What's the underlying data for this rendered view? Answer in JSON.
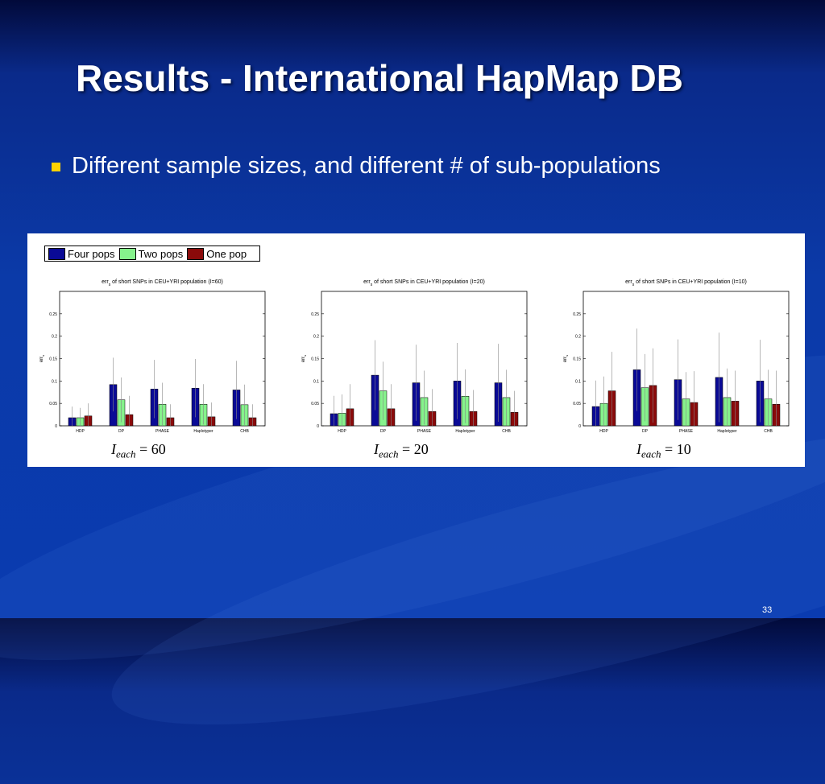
{
  "slide": {
    "title": "Results - International HapMap DB",
    "bullet": "Different sample sizes, and different # of sub-populations",
    "page_number": "33"
  },
  "colors": {
    "background": "#0b3aa8",
    "bullet": "#ffd200",
    "series": [
      "#0a0a96",
      "#86f28c",
      "#8a0a0a"
    ]
  },
  "legend": [
    {
      "label": "Four pops",
      "color": "#0a0a96"
    },
    {
      "label": "Two pops",
      "color": "#86f28c"
    },
    {
      "label": "One pop",
      "color": "#8a0a0a"
    }
  ],
  "chart_data": [
    {
      "type": "bar",
      "title_prefix": "err",
      "title_sub": "s",
      "title_rest": " of short SNPs in CEU+YRI population (I=60)",
      "ylabel_main": "err",
      "ylabel_sub": "s",
      "categories": [
        "HDP",
        "DP",
        "PHASE",
        "Haplotyper",
        "CHB"
      ],
      "yticks": [
        "0",
        "0.05",
        "0.1",
        "0.15",
        "0.2",
        "0.25"
      ],
      "ylim": [
        0,
        0.3
      ],
      "grid": false,
      "caption_var": "I",
      "caption_sub": "each",
      "caption_value": "= 60",
      "series": [
        {
          "name": "Four pops",
          "values": [
            0.018,
            0.092,
            0.082,
            0.084,
            0.08
          ],
          "err": [
            0.025,
            0.06,
            0.065,
            0.065,
            0.065
          ]
        },
        {
          "name": "Two pops",
          "values": [
            0.018,
            0.058,
            0.048,
            0.048,
            0.047
          ],
          "err": [
            0.022,
            0.05,
            0.048,
            0.045,
            0.045
          ]
        },
        {
          "name": "One pop",
          "values": [
            0.022,
            0.025,
            0.018,
            0.02,
            0.018
          ],
          "err": [
            0.028,
            0.042,
            0.03,
            0.032,
            0.03
          ]
        }
      ]
    },
    {
      "type": "bar",
      "title_prefix": "err",
      "title_sub": "s",
      "title_rest": " of short SNPs in CEU+YRI population (I=20)",
      "ylabel_main": "err",
      "ylabel_sub": "s",
      "categories": [
        "HDP",
        "DP",
        "PHASE",
        "Haplotyper",
        "CHB"
      ],
      "yticks": [
        "0",
        "0.05",
        "0.1",
        "0.15",
        "0.2",
        "0.25"
      ],
      "ylim": [
        0,
        0.3
      ],
      "grid": false,
      "caption_var": "I",
      "caption_sub": "each",
      "caption_value": "= 20",
      "series": [
        {
          "name": "Four pops",
          "values": [
            0.027,
            0.113,
            0.096,
            0.1,
            0.096
          ],
          "err": [
            0.04,
            0.078,
            0.085,
            0.085,
            0.087
          ]
        },
        {
          "name": "Two pops",
          "values": [
            0.028,
            0.078,
            0.063,
            0.066,
            0.063
          ],
          "err": [
            0.042,
            0.065,
            0.06,
            0.06,
            0.062
          ]
        },
        {
          "name": "One pop",
          "values": [
            0.038,
            0.038,
            0.032,
            0.032,
            0.03
          ],
          "err": [
            0.055,
            0.055,
            0.05,
            0.048,
            0.048
          ]
        }
      ]
    },
    {
      "type": "bar",
      "title_prefix": "err",
      "title_sub": "s",
      "title_rest": " of short SNPs in CEU+YRI population (I=10)",
      "ylabel_main": "err",
      "ylabel_sub": "s",
      "categories": [
        "HDP",
        "DP",
        "PHASE",
        "Haplotyper",
        "CHB"
      ],
      "yticks": [
        "0",
        "0.05",
        "0.1",
        "0.15",
        "0.2",
        "0.25"
      ],
      "ylim": [
        0,
        0.3
      ],
      "grid": false,
      "caption_var": "I",
      "caption_sub": "each",
      "caption_value": "= 10",
      "series": [
        {
          "name": "Four pops",
          "values": [
            0.043,
            0.125,
            0.103,
            0.108,
            0.1
          ],
          "err": [
            0.058,
            0.092,
            0.09,
            0.1,
            0.092
          ]
        },
        {
          "name": "Two pops",
          "values": [
            0.05,
            0.085,
            0.06,
            0.063,
            0.06
          ],
          "err": [
            0.06,
            0.075,
            0.06,
            0.065,
            0.065
          ]
        },
        {
          "name": "One pop",
          "values": [
            0.078,
            0.09,
            0.052,
            0.055,
            0.048
          ],
          "err": [
            0.087,
            0.083,
            0.07,
            0.068,
            0.075
          ]
        }
      ]
    }
  ]
}
